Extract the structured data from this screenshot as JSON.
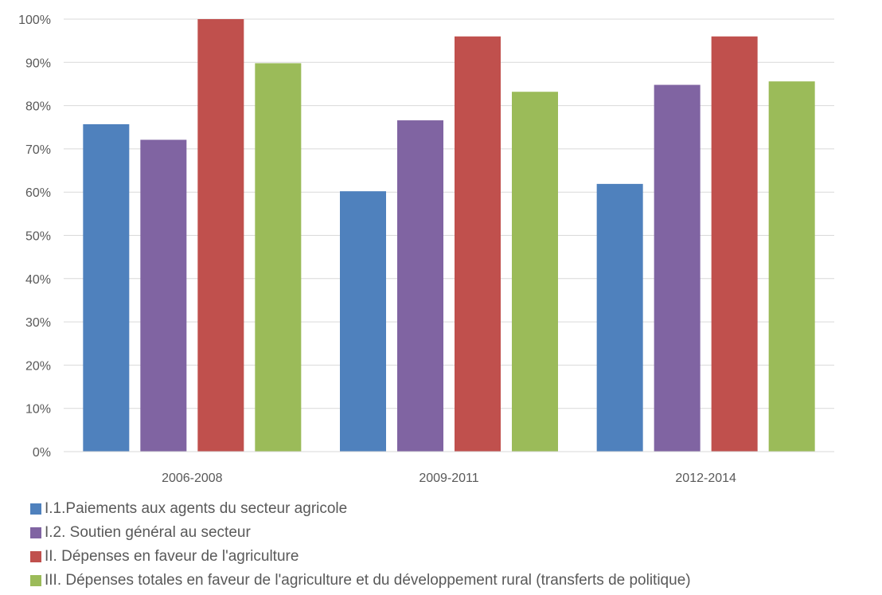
{
  "chart_data": {
    "type": "bar",
    "categories": [
      "2006-2008",
      "2009-2011",
      "2012-2014"
    ],
    "series": [
      {
        "name": "I.1.Paiements aux agents du secteur agricole",
        "values": [
          75.7,
          60.2,
          61.9
        ],
        "color": "#4f81bd"
      },
      {
        "name": "I.2. Soutien général au secteur",
        "values": [
          72.1,
          76.6,
          84.8
        ],
        "color": "#8064a2"
      },
      {
        "name": "II. Dépenses en faveur de l'agriculture",
        "values": [
          100,
          96,
          96
        ],
        "color": "#c0504d"
      },
      {
        "name": "III. Dépenses totales en faveur de l'agriculture et du développement rural (transferts de politique)",
        "values": [
          89.8,
          83.2,
          85.6
        ],
        "color": "#9bbb59"
      }
    ],
    "yticks": [
      "0%",
      "10%",
      "20%",
      "30%",
      "40%",
      "50%",
      "60%",
      "70%",
      "80%",
      "90%",
      "100%"
    ],
    "ylim": [
      0,
      100
    ],
    "title": "",
    "xlabel": "",
    "ylabel": "",
    "grid": true,
    "legend_position": "bottom-left"
  }
}
